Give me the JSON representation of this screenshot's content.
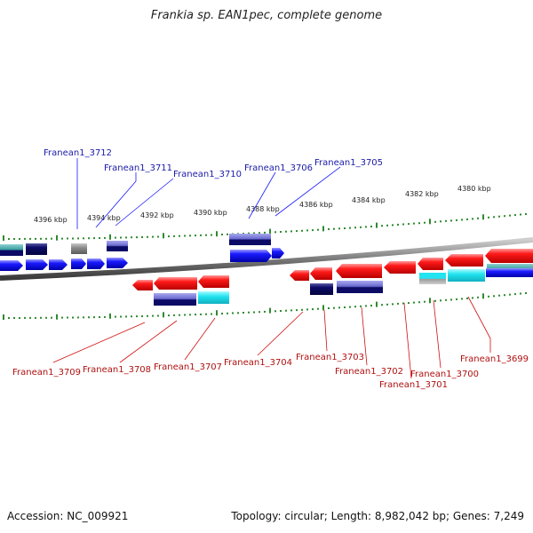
{
  "title": "Frankia sp. EAN1pec, complete genome",
  "footer": {
    "accession": "Accession: NC_009921",
    "summary": "Topology: circular; Length: 8,982,042 bp; Genes: 7,249"
  },
  "ruler_labels": [
    "4396 kbp",
    "4394 kbp",
    "4392 kbp",
    "4390 kbp",
    "4388 kbp",
    "4386 kbp",
    "4384 kbp",
    "4382 kbp",
    "4380 kbp"
  ],
  "forward_labels": [
    "Franean1_3712",
    "Franean1_3711",
    "Franean1_3710",
    "Franean1_3706",
    "Franean1_3705"
  ],
  "reverse_labels": [
    "Franean1_3709",
    "Franean1_3708",
    "Franean1_3707",
    "Franean1_3704",
    "Franean1_3703",
    "Franean1_3702",
    "Franean1_3701",
    "Franean1_3700",
    "Franean1_3699"
  ],
  "colors": {
    "forward_gene": "#1a1aff",
    "reverse_gene": "#ff1a1a",
    "forward_label": "#1a1aa8",
    "reverse_label": "#b01010",
    "tick": "#2f8a2f",
    "backbone": "#8a8a8a",
    "navy": "#0b0b66",
    "slate": "#6a6acf",
    "teal": "#3aa0a0",
    "cyan": "#22e4f0",
    "gray": "#8c8c8c"
  }
}
